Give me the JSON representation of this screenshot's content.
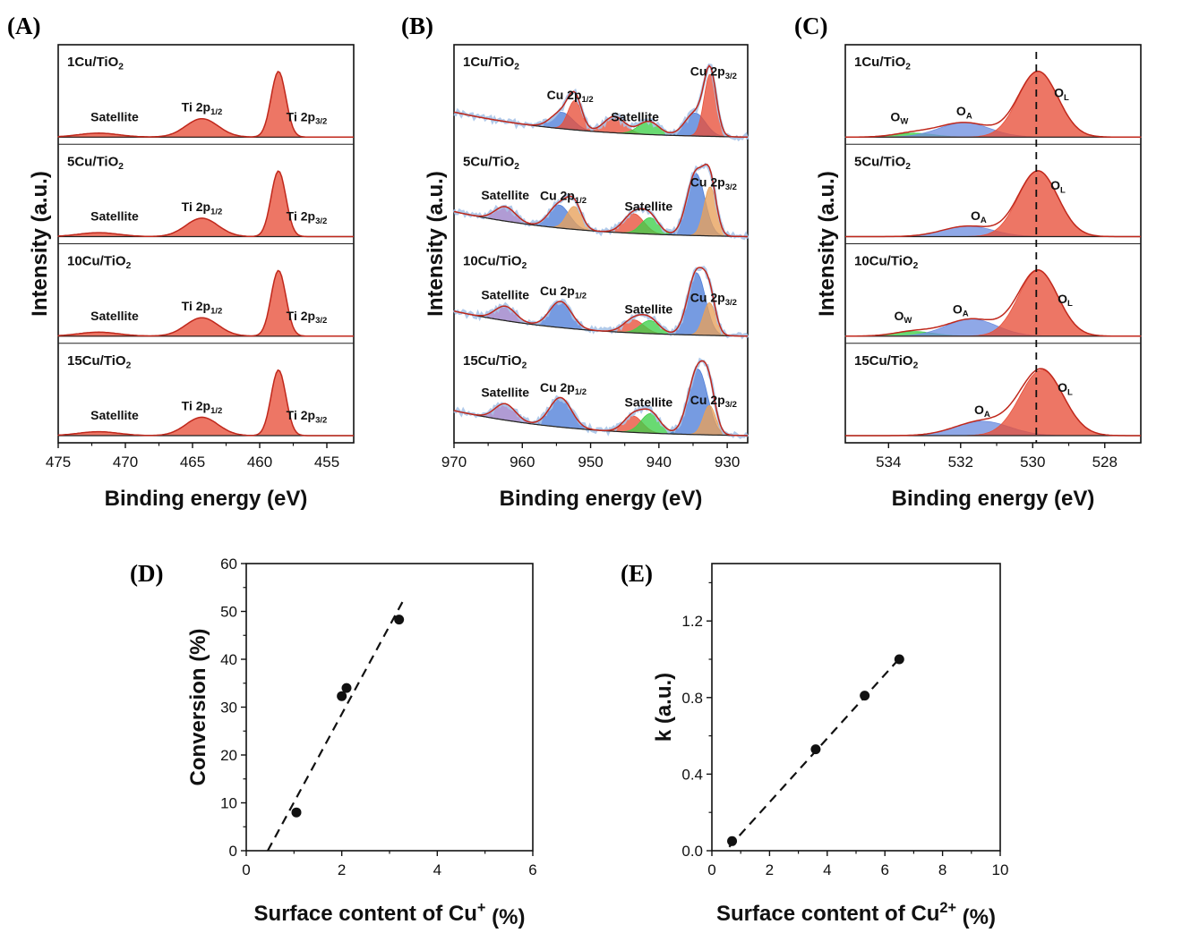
{
  "figure": {
    "panels": [
      "(A)",
      "(B)",
      "(C)",
      "(D)",
      "(E)"
    ]
  },
  "chart_data": [
    {
      "id": "A",
      "type": "line",
      "title": "(A)",
      "xlabel": "Binding energy (eV)",
      "ylabel": "Intensity (a.u.)",
      "xlim": [
        475,
        453
      ],
      "xticks": [
        475,
        470,
        465,
        460,
        455
      ],
      "tick_labels": [
        "475",
        "470",
        "465",
        "460",
        "455"
      ],
      "colors": {
        "red": "#e8503a",
        "envelope": "#c0281c",
        "background": "#222222"
      },
      "series": [
        {
          "name": "1Cu/TiO2",
          "label": "1Cu/TiO",
          "sub": "2",
          "peaks": [
            {
              "center": 472.0,
              "height": 0.06,
              "width": 1.5
            },
            {
              "center": 464.3,
              "height": 0.28,
              "width": 1.2
            },
            {
              "center": 458.6,
              "height": 1.0,
              "width": 0.55
            }
          ],
          "annotations": [
            {
              "text": "Satellite",
              "sub": "",
              "x": 470.8
            },
            {
              "text": "Ti 2p",
              "sub": "1/2",
              "x": 464.3
            },
            {
              "text": "Ti 2p",
              "sub": "3/2",
              "x": 456.5
            }
          ]
        },
        {
          "name": "5Cu/TiO2",
          "label": "5Cu/TiO",
          "sub": "2",
          "peaks": [
            {
              "center": 472.0,
              "height": 0.06,
              "width": 1.5
            },
            {
              "center": 464.3,
              "height": 0.28,
              "width": 1.2
            },
            {
              "center": 458.6,
              "height": 1.0,
              "width": 0.55
            }
          ],
          "annotations": [
            {
              "text": "Satellite",
              "sub": "",
              "x": 470.8
            },
            {
              "text": "Ti 2p",
              "sub": "1/2",
              "x": 464.3
            },
            {
              "text": "Ti 2p",
              "sub": "3/2",
              "x": 456.5
            }
          ]
        },
        {
          "name": "10Cu/TiO2",
          "label": "10Cu/TiO",
          "sub": "2",
          "peaks": [
            {
              "center": 472.0,
              "height": 0.06,
              "width": 1.5
            },
            {
              "center": 464.3,
              "height": 0.28,
              "width": 1.2
            },
            {
              "center": 458.6,
              "height": 1.0,
              "width": 0.55
            }
          ],
          "annotations": [
            {
              "text": "Satellite",
              "sub": "",
              "x": 470.8
            },
            {
              "text": "Ti 2p",
              "sub": "1/2",
              "x": 464.3
            },
            {
              "text": "Ti 2p",
              "sub": "3/2",
              "x": 456.5
            }
          ]
        },
        {
          "name": "15Cu/TiO2",
          "label": "15Cu/TiO",
          "sub": "2",
          "peaks": [
            {
              "center": 472.0,
              "height": 0.06,
              "width": 1.5
            },
            {
              "center": 464.3,
              "height": 0.28,
              "width": 1.2
            },
            {
              "center": 458.6,
              "height": 1.0,
              "width": 0.55
            }
          ],
          "annotations": [
            {
              "text": "Satellite",
              "sub": "",
              "x": 470.8
            },
            {
              "text": "Ti 2p",
              "sub": "1/2",
              "x": 464.3
            },
            {
              "text": "Ti 2p",
              "sub": "3/2",
              "x": 456.5
            }
          ]
        }
      ]
    },
    {
      "id": "B",
      "type": "line",
      "title": "(B)",
      "xlabel": "Binding energy (eV)",
      "ylabel": "Intensity (a.u.)",
      "xlim": [
        970,
        927
      ],
      "xticks": [
        970,
        960,
        950,
        940,
        930
      ],
      "tick_labels": [
        "970",
        "960",
        "950",
        "940",
        "930"
      ],
      "colors": {
        "blue": "#4f7fd8",
        "red": "#e8503a",
        "green": "#3fcf4a",
        "purple": "#9a7fc8",
        "orange": "#e8a05a",
        "envelope": "#c0281c",
        "raw": "#a8c4e8",
        "background": "#222222"
      },
      "series": [
        {
          "name": "1Cu/TiO2",
          "label": "1Cu/TiO",
          "sub": "2",
          "peaks": [
            {
              "center": 954.2,
              "height": 0.25,
              "width": 1.6,
              "color": "blue"
            },
            {
              "center": 952.3,
              "height": 0.45,
              "width": 1.0,
              "color": "red"
            },
            {
              "center": 946.5,
              "height": 0.25,
              "width": 1.5,
              "color": "red"
            },
            {
              "center": 941.5,
              "height": 0.2,
              "width": 1.5,
              "color": "green"
            },
            {
              "center": 934.7,
              "height": 0.35,
              "width": 1.5,
              "color": "blue"
            },
            {
              "center": 932.5,
              "height": 0.95,
              "width": 0.9,
              "color": "red"
            }
          ],
          "annotations": [
            {
              "text": "Cu 2p",
              "sub": "1/2",
              "x": 953.0
            },
            {
              "text": "Satellite",
              "sub": "",
              "x": 943.5
            },
            {
              "text": "Cu 2p",
              "sub": "3/2",
              "x": 932.0
            }
          ]
        },
        {
          "name": "5Cu/TiO2",
          "label": "5Cu/TiO",
          "sub": "2",
          "peaks": [
            {
              "center": 962.5,
              "height": 0.22,
              "width": 1.5,
              "color": "purple"
            },
            {
              "center": 954.6,
              "height": 0.35,
              "width": 1.5,
              "color": "blue"
            },
            {
              "center": 952.4,
              "height": 0.35,
              "width": 1.1,
              "color": "orange"
            },
            {
              "center": 943.7,
              "height": 0.3,
              "width": 1.5,
              "color": "red"
            },
            {
              "center": 941.3,
              "height": 0.25,
              "width": 1.3,
              "color": "green"
            },
            {
              "center": 934.6,
              "height": 0.95,
              "width": 1.3,
              "color": "blue"
            },
            {
              "center": 932.5,
              "height": 0.75,
              "width": 0.9,
              "color": "orange"
            }
          ],
          "annotations": [
            {
              "text": "Satellite",
              "sub": "",
              "x": 962.5
            },
            {
              "text": "Cu 2p",
              "sub": "1/2",
              "x": 954.0
            },
            {
              "text": "Satellite",
              "sub": "",
              "x": 941.5
            },
            {
              "text": "Cu 2p",
              "sub": "3/2",
              "x": 932.0
            }
          ]
        },
        {
          "name": "10Cu/TiO2",
          "label": "10Cu/TiO",
          "sub": "2",
          "peaks": [
            {
              "center": 962.5,
              "height": 0.22,
              "width": 1.5,
              "color": "purple"
            },
            {
              "center": 954.4,
              "height": 0.4,
              "width": 1.6,
              "color": "blue"
            },
            {
              "center": 943.7,
              "height": 0.2,
              "width": 1.5,
              "color": "red"
            },
            {
              "center": 941.3,
              "height": 0.2,
              "width": 1.4,
              "color": "green"
            },
            {
              "center": 934.5,
              "height": 0.95,
              "width": 1.3,
              "color": "blue"
            },
            {
              "center": 932.6,
              "height": 0.5,
              "width": 0.9,
              "color": "orange"
            }
          ],
          "annotations": [
            {
              "text": "Satellite",
              "sub": "",
              "x": 962.5
            },
            {
              "text": "Cu 2p",
              "sub": "1/2",
              "x": 954.0
            },
            {
              "text": "Satellite",
              "sub": "",
              "x": 941.5
            },
            {
              "text": "Cu 2p",
              "sub": "3/2",
              "x": 932.0
            }
          ]
        },
        {
          "name": "15Cu/TiO2",
          "label": "15Cu/TiO",
          "sub": "2",
          "peaks": [
            {
              "center": 962.5,
              "height": 0.25,
              "width": 1.5,
              "color": "purple"
            },
            {
              "center": 954.4,
              "height": 0.45,
              "width": 1.6,
              "color": "blue"
            },
            {
              "center": 943.8,
              "height": 0.25,
              "width": 1.4,
              "color": "red"
            },
            {
              "center": 941.2,
              "height": 0.3,
              "width": 1.4,
              "color": "green"
            },
            {
              "center": 934.3,
              "height": 1.0,
              "width": 1.4,
              "color": "blue"
            },
            {
              "center": 932.6,
              "height": 0.45,
              "width": 0.9,
              "color": "orange"
            }
          ],
          "annotations": [
            {
              "text": "Satellite",
              "sub": "",
              "x": 962.5
            },
            {
              "text": "Cu 2p",
              "sub": "1/2",
              "x": 954.0
            },
            {
              "text": "Satellite",
              "sub": "",
              "x": 941.5
            },
            {
              "text": "Cu 2p",
              "sub": "3/2",
              "x": 932.0
            }
          ]
        }
      ]
    },
    {
      "id": "C",
      "type": "line",
      "title": "(C)",
      "xlabel": "Binding energy (eV)",
      "ylabel": "Intensity (a.u.)",
      "xlim": [
        535.2,
        527.0
      ],
      "xticks": [
        534,
        532,
        530,
        528
      ],
      "tick_labels": [
        "534",
        "532",
        "530",
        "528"
      ],
      "reference_line": 529.9,
      "colors": {
        "red": "#e8503a",
        "blue": "#6f8fe0",
        "green": "#3fcf4a",
        "envelope": "#c0281c",
        "background": "#222222"
      },
      "series": [
        {
          "name": "1Cu/TiO2",
          "label": "1Cu/TiO",
          "sub": "2",
          "peaks": [
            {
              "center": 533.3,
              "height": 0.06,
              "width": 0.55,
              "color": "green"
            },
            {
              "center": 531.9,
              "height": 0.22,
              "width": 0.7,
              "color": "blue"
            },
            {
              "center": 529.85,
              "height": 1.0,
              "width": 0.55,
              "color": "red"
            }
          ],
          "annotations": [
            {
              "text": "O",
              "sub": "W",
              "x": 533.7
            },
            {
              "text": "O",
              "sub": "A",
              "x": 531.9
            },
            {
              "text": "O",
              "sub": "L",
              "x": 529.2
            }
          ]
        },
        {
          "name": "5Cu/TiO2",
          "label": "5Cu/TiO",
          "sub": "2",
          "peaks": [
            {
              "center": 531.8,
              "height": 0.16,
              "width": 0.7,
              "color": "blue"
            },
            {
              "center": 529.85,
              "height": 1.0,
              "width": 0.55,
              "color": "red"
            }
          ],
          "annotations": [
            {
              "text": "O",
              "sub": "A",
              "x": 531.5
            },
            {
              "text": "O",
              "sub": "L",
              "x": 529.3
            }
          ]
        },
        {
          "name": "10Cu/TiO2",
          "label": "10Cu/TiO",
          "sub": "2",
          "peaks": [
            {
              "center": 533.3,
              "height": 0.07,
              "width": 0.55,
              "color": "green"
            },
            {
              "center": 531.7,
              "height": 0.26,
              "width": 0.7,
              "color": "blue"
            },
            {
              "center": 529.85,
              "height": 1.0,
              "width": 0.55,
              "color": "red"
            }
          ],
          "annotations": [
            {
              "text": "O",
              "sub": "W",
              "x": 533.6
            },
            {
              "text": "O",
              "sub": "A",
              "x": 532.0
            },
            {
              "text": "O",
              "sub": "L",
              "x": 529.1
            }
          ]
        },
        {
          "name": "15Cu/TiO2",
          "label": "15Cu/TiO",
          "sub": "2",
          "peaks": [
            {
              "center": 531.4,
              "height": 0.22,
              "width": 0.75,
              "color": "blue"
            },
            {
              "center": 529.75,
              "height": 1.0,
              "width": 0.6,
              "color": "red"
            }
          ],
          "annotations": [
            {
              "text": "O",
              "sub": "A",
              "x": 531.4
            },
            {
              "text": "O",
              "sub": "L",
              "x": 529.1
            }
          ]
        }
      ]
    },
    {
      "id": "D",
      "type": "scatter",
      "title": "(D)",
      "xlabel": "Surface content of Cu",
      "xlabel_sup": "+",
      "xlabel_tail": " (%)",
      "ylabel": "Conversion (%)",
      "xlim": [
        0,
        6
      ],
      "ylim": [
        0,
        60
      ],
      "xticks": [
        0,
        2,
        4,
        6
      ],
      "yticks": [
        0,
        10,
        20,
        30,
        40,
        50,
        60
      ],
      "xtick_labels": [
        "0",
        "2",
        "4",
        "6"
      ],
      "ytick_labels": [
        "0",
        "10",
        "20",
        "30",
        "40",
        "50",
        "60"
      ],
      "x": [
        1.05,
        2.0,
        2.1,
        3.2
      ],
      "y": [
        8,
        32.3,
        34,
        48.3
      ],
      "fit_line": {
        "x": [
          0.45,
          3.3
        ],
        "y": [
          0,
          52.5
        ]
      }
    },
    {
      "id": "E",
      "type": "scatter",
      "title": "(E)",
      "xlabel": "Surface content of Cu",
      "xlabel_sup": "2+",
      "xlabel_tail": " (%)",
      "ylabel": "k (a.u.)",
      "xlim": [
        0,
        10
      ],
      "ylim": [
        0,
        1.5
      ],
      "xticks": [
        0,
        2,
        4,
        6,
        8,
        10
      ],
      "yticks": [
        0.0,
        0.4,
        0.8,
        1.2
      ],
      "xtick_labels": [
        "0",
        "2",
        "4",
        "6",
        "8",
        "10"
      ],
      "ytick_labels": [
        "0.0",
        "0.4",
        "0.8",
        "1.2"
      ],
      "x": [
        0.7,
        3.6,
        5.3,
        6.5
      ],
      "y": [
        0.05,
        0.53,
        0.81,
        1.0
      ],
      "fit_line": {
        "x": [
          0.6,
          6.6
        ],
        "y": [
          0.02,
          1.02
        ]
      }
    }
  ]
}
